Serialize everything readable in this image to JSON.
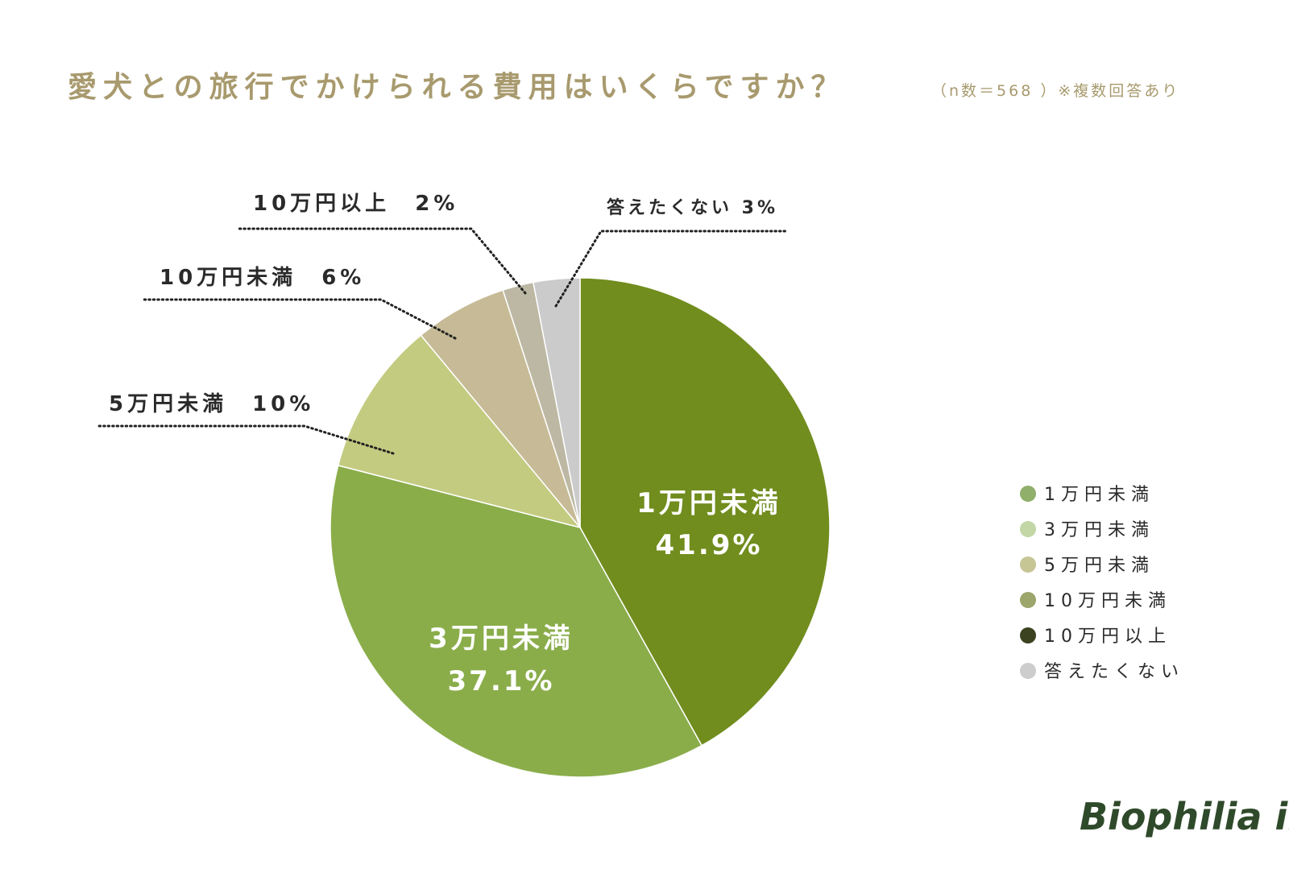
{
  "chart_data": {
    "type": "pie",
    "title": "愛犬との旅行でかけられる費用はいくらですか？",
    "subtitle": "（n数＝568 ）※複数回答あり",
    "slices": [
      {
        "label": "1万円未満",
        "value": 41.9,
        "display": "41.9%",
        "color": "#718d1e",
        "callout": false
      },
      {
        "label": "3万円未満",
        "value": 37.1,
        "display": "37.1%",
        "color": "#8aad4a",
        "callout": false
      },
      {
        "label": "5万円未満",
        "value": 10,
        "display": "10%",
        "color": "#c3cb80",
        "callout": true
      },
      {
        "label": "10万円未満",
        "value": 6,
        "display": "6%",
        "color": "#c6bb96",
        "callout": true
      },
      {
        "label": "10万円以上",
        "value": 2,
        "display": "2%",
        "color": "#bcb8a3",
        "callout": true
      },
      {
        "label": "答えたくない",
        "value": 3,
        "display": "3%",
        "color": "#cbcbcb",
        "callout": true
      }
    ],
    "legend": {
      "position": "right",
      "items": [
        {
          "label": "1万円未満",
          "color": "#8faf6a"
        },
        {
          "label": "3万円未満",
          "color": "#c2d6a6"
        },
        {
          "label": "5万円未満",
          "color": "#c6c594"
        },
        {
          "label": "10万円未満",
          "color": "#9ca56c"
        },
        {
          "label": "10万円以上",
          "color": "#3b4220"
        },
        {
          "label": "答えたくない",
          "color": "#cdcdcd"
        }
      ]
    }
  },
  "brand": {
    "logo_text": "Biophilia inc.",
    "logo_color": "#2f4a2a"
  },
  "colors": {
    "title": "#a89a6e",
    "subtitle": "#a89a6e",
    "callout_text": "#2a2a2a",
    "inner_label": "#ffffff",
    "leader": "#222222"
  }
}
